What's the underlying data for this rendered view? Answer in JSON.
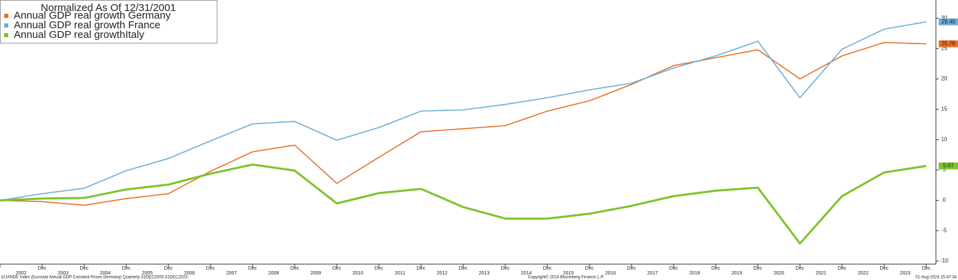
{
  "chart_data": {
    "type": "line",
    "legend_title": "Normalized As Of 12/31/2001",
    "legend_position": "top-left",
    "grid": false,
    "categories": [
      null,
      "Dec",
      "Dec",
      "Dec",
      "Dec",
      "Dec",
      "Dec",
      "Dec",
      "Dec",
      "Dec",
      "Dec",
      "Dec",
      "Dec",
      "Dec",
      "Dec",
      "Dec",
      "Dec",
      "Dec",
      "Dec",
      "Dec",
      "Dec",
      "Dec",
      "Dec"
    ],
    "year_labels": [
      "2002",
      "2003",
      "2004",
      "2005",
      "2006",
      "2007",
      "2008",
      "2009",
      "2010",
      "2011",
      "2012",
      "2013",
      "2014",
      "2015",
      "2016",
      "2017",
      "2018",
      "2019",
      "2020",
      "2021",
      "2022",
      "2023"
    ],
    "ylim": [
      -10.5,
      33
    ],
    "yticks": [
      -10,
      -5,
      0,
      5,
      10,
      15,
      20,
      25,
      30
    ],
    "series": [
      {
        "name": "Annual GDP real growth Germany",
        "color": "#e8702a",
        "values": [
          0,
          -0.2,
          -0.8,
          0.3,
          1.1,
          4.8,
          8.0,
          9.1,
          2.8,
          7.1,
          11.3,
          11.8,
          12.3,
          14.7,
          16.4,
          19.1,
          22.2,
          23.5,
          24.8,
          20.0,
          23.8,
          26.0,
          25.78
        ],
        "value_labels": [
          null,
          null,
          null,
          null,
          null,
          null,
          null,
          null,
          null,
          null,
          null,
          null,
          null,
          null,
          null,
          null,
          null,
          null,
          null,
          null,
          null,
          null,
          "25.78"
        ]
      },
      {
        "name": "Annual GDP real growth France",
        "color": "#6aaed6",
        "values": [
          0,
          1.1,
          2.0,
          4.9,
          6.9,
          9.8,
          12.6,
          13.0,
          9.9,
          12.0,
          14.7,
          14.9,
          15.8,
          16.9,
          18.2,
          19.3,
          21.8,
          23.8,
          26.2,
          16.9,
          24.9,
          28.2,
          29.4
        ],
        "value_labels": [
          null,
          null,
          null,
          null,
          null,
          null,
          null,
          null,
          null,
          null,
          null,
          null,
          null,
          null,
          null,
          null,
          null,
          null,
          null,
          null,
          null,
          null,
          "29.40"
        ]
      },
      {
        "name": "Annual GDP real growthItaly",
        "color": "#7cc42a",
        "values": [
          0,
          0.3,
          0.4,
          1.8,
          2.6,
          4.4,
          5.9,
          4.9,
          -0.5,
          1.2,
          1.9,
          -1.1,
          -3.0,
          -3.0,
          -2.2,
          -0.9,
          0.7,
          1.6,
          2.1,
          -7.1,
          0.7,
          4.6,
          5.67
        ],
        "value_labels": [
          null,
          null,
          null,
          null,
          null,
          null,
          null,
          null,
          null,
          null,
          null,
          null,
          null,
          null,
          null,
          null,
          null,
          null,
          null,
          null,
          null,
          null,
          "5.67"
        ]
      }
    ],
    "footer_left": "EUANDE Index (Eurostat Annual GDP Constant Prices Germany) Quarterly 31DEC2000-31DEC2023",
    "footer_center": "Copyright© 2024 Bloomberg Finance L.P.",
    "footer_right": "01-Aug-2024 15:47:34"
  }
}
